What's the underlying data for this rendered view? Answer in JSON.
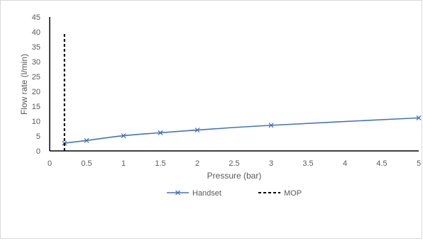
{
  "chart_data": {
    "type": "line",
    "title": "",
    "xlabel": "Pressure (bar)",
    "ylabel": "Flow rate (l/min)",
    "xlim": [
      0,
      5
    ],
    "ylim": [
      0,
      45
    ],
    "x_ticks": [
      0,
      0.5,
      1,
      1.5,
      2,
      2.5,
      3,
      3.5,
      4,
      4.5,
      5
    ],
    "x_tick_labels": [
      "0",
      "0.5",
      "1",
      "1.5",
      "2",
      "2.5",
      "3",
      "3.5",
      "4",
      "4.5",
      "5"
    ],
    "y_ticks": [
      0,
      5,
      10,
      15,
      20,
      25,
      30,
      35,
      40,
      45
    ],
    "y_tick_labels": [
      "0",
      "5",
      "10",
      "15",
      "20",
      "25",
      "30",
      "35",
      "40",
      "45"
    ],
    "grid": false,
    "legend_position": "bottom",
    "series": [
      {
        "name": "Handset",
        "style": "solid line with x markers",
        "color": "#4472c4",
        "x": [
          0.2,
          0.5,
          1,
          1.5,
          2,
          3,
          5
        ],
        "y": [
          2.6,
          3.5,
          5.1,
          6.1,
          7.0,
          8.6,
          11.1
        ]
      },
      {
        "name": "MOP",
        "style": "dashed vertical line",
        "color": "#000000",
        "x": [
          0.2,
          0.2
        ],
        "y": [
          0,
          40
        ]
      }
    ]
  }
}
